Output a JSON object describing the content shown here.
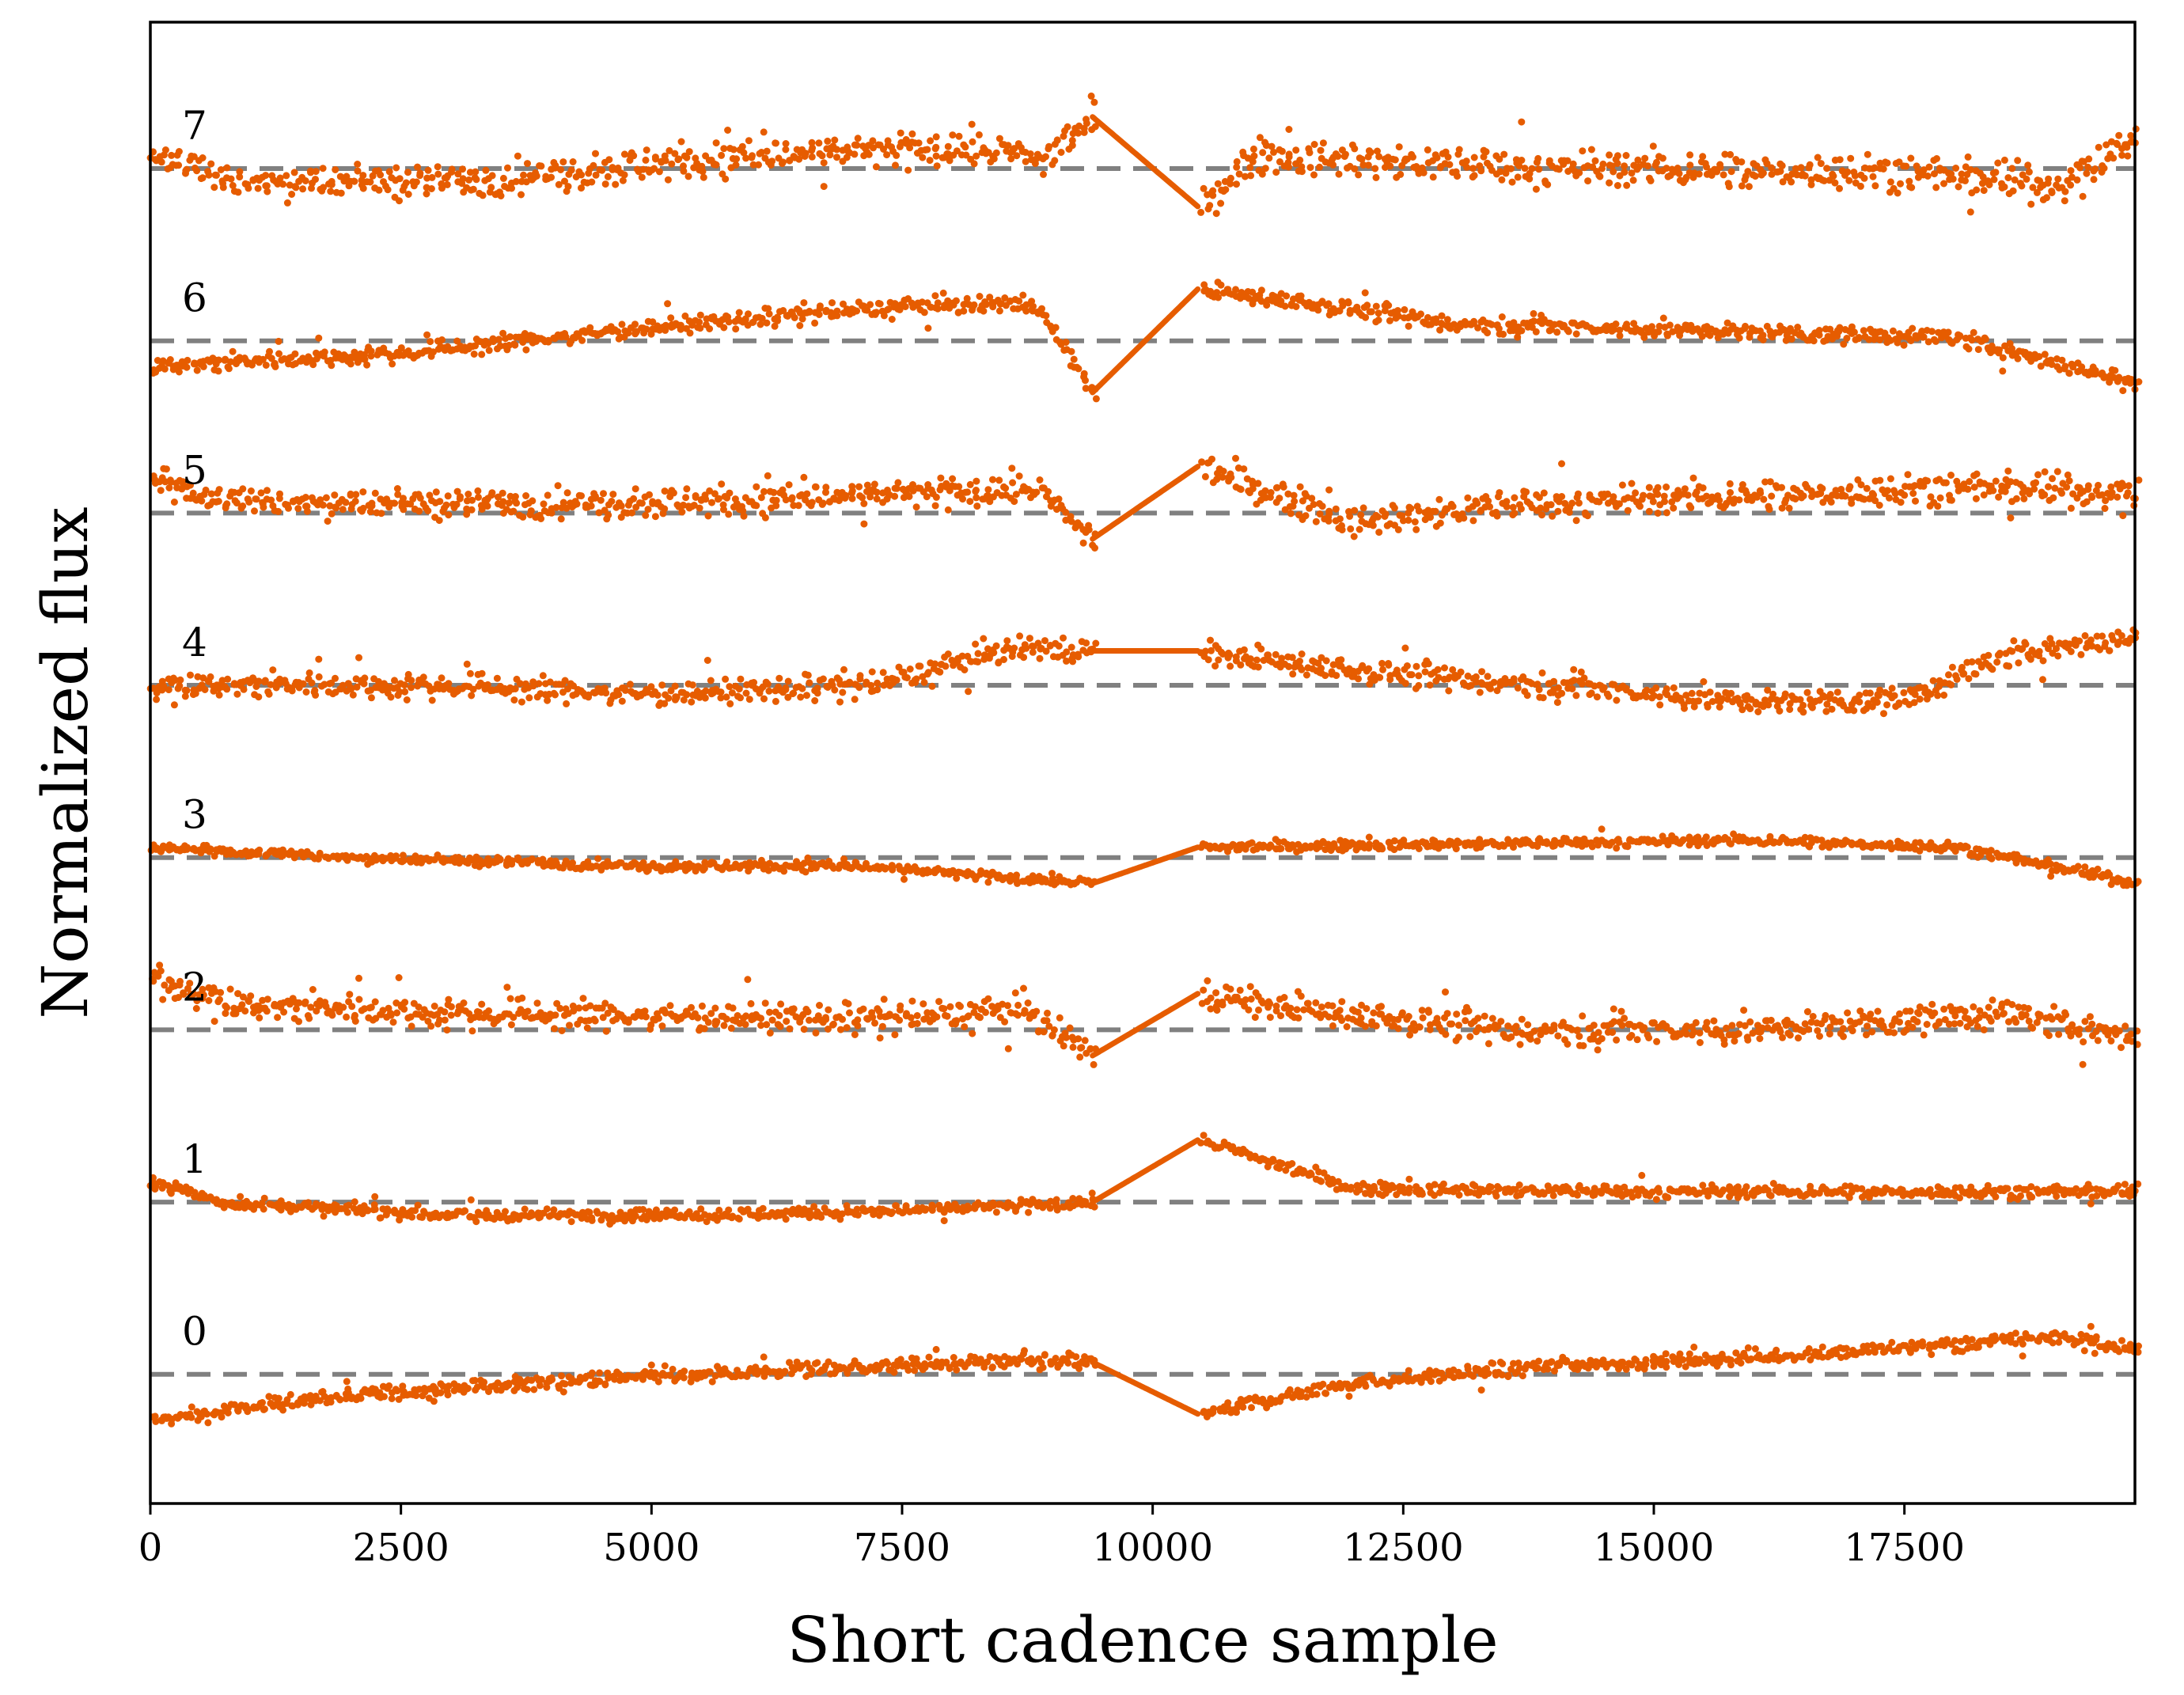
{
  "chart_data": {
    "type": "scatter",
    "title": "",
    "xlabel": "Short cadence sample",
    "ylabel": "Normalized flux",
    "xlim": [
      0,
      19800
    ],
    "x_ticks": [
      0,
      2500,
      5000,
      7500,
      10000,
      12500,
      15000,
      17500
    ],
    "x_tick_labels": [
      "0",
      "2500",
      "5000",
      "7500",
      "10000",
      "12500",
      "15000",
      "17500"
    ],
    "ylim": [
      -0.75,
      7.85
    ],
    "y_ticks_shown": false,
    "gap": [
      9400,
      10450
    ],
    "colors": {
      "data": "#e65c00",
      "baseline": "#808080",
      "axes": "#000000"
    },
    "series": [
      {
        "name": "0",
        "offset": 0,
        "label": "0",
        "trend": [
          [
            0,
            -0.27
          ],
          [
            1500,
            -0.15
          ],
          [
            3000,
            -0.08
          ],
          [
            5000,
            -0.01
          ],
          [
            7000,
            0.04
          ],
          [
            8700,
            0.07
          ],
          [
            9400,
            0.07
          ],
          [
            10450,
            -0.23
          ],
          [
            12000,
            -0.05
          ],
          [
            14000,
            0.05
          ],
          [
            16000,
            0.1
          ],
          [
            18000,
            0.17
          ],
          [
            19000,
            0.22
          ],
          [
            19800,
            0.14
          ]
        ],
        "noise": 0.03
      },
      {
        "name": "1",
        "offset": 1,
        "label": "1",
        "trend": [
          [
            0,
            0.12
          ],
          [
            700,
            0.0
          ],
          [
            3000,
            -0.08
          ],
          [
            6000,
            -0.07
          ],
          [
            8000,
            -0.04
          ],
          [
            9400,
            0.0
          ],
          [
            10450,
            0.36
          ],
          [
            12000,
            0.08
          ],
          [
            15000,
            0.06
          ],
          [
            18000,
            0.06
          ],
          [
            19800,
            0.06
          ]
        ],
        "noise": 0.025
      },
      {
        "name": "2",
        "offset": 2,
        "label": "2",
        "trend": [
          [
            0,
            0.3
          ],
          [
            900,
            0.14
          ],
          [
            3000,
            0.1
          ],
          [
            5300,
            0.08
          ],
          [
            7300,
            0.06
          ],
          [
            8700,
            0.12
          ],
          [
            9400,
            -0.15
          ],
          [
            10450,
            0.21
          ],
          [
            12000,
            0.08
          ],
          [
            13500,
            0.0
          ],
          [
            16000,
            0.0
          ],
          [
            18500,
            0.1
          ],
          [
            19800,
            -0.05
          ]
        ],
        "noise": 0.06
      },
      {
        "name": "3",
        "offset": 3,
        "label": "3",
        "trend": [
          [
            0,
            0.06
          ],
          [
            2000,
            0.0
          ],
          [
            5000,
            -0.05
          ],
          [
            7000,
            -0.05
          ],
          [
            8600,
            -0.12
          ],
          [
            9400,
            -0.15
          ],
          [
            10450,
            0.06
          ],
          [
            13000,
            0.08
          ],
          [
            16000,
            0.1
          ],
          [
            18000,
            0.06
          ],
          [
            19800,
            -0.15
          ]
        ],
        "noise": 0.02
      },
      {
        "name": "4",
        "offset": 4,
        "label": "4",
        "trend": [
          [
            0,
            0.0
          ],
          [
            3000,
            0.0
          ],
          [
            5000,
            -0.05
          ],
          [
            7200,
            0.0
          ],
          [
            8600,
            0.22
          ],
          [
            9400,
            0.2
          ],
          [
            10450,
            0.2
          ],
          [
            12000,
            0.08
          ],
          [
            14000,
            0.0
          ],
          [
            16000,
            -0.1
          ],
          [
            17500,
            -0.08
          ],
          [
            18500,
            0.18
          ],
          [
            19800,
            0.28
          ]
        ],
        "noise": 0.05
      },
      {
        "name": "5",
        "offset": 5,
        "label": "5",
        "trend": [
          [
            0,
            0.2
          ],
          [
            800,
            0.07
          ],
          [
            3000,
            0.05
          ],
          [
            6000,
            0.07
          ],
          [
            8800,
            0.14
          ],
          [
            9400,
            -0.15
          ],
          [
            10450,
            0.27
          ],
          [
            12000,
            -0.05
          ],
          [
            13500,
            0.05
          ],
          [
            16000,
            0.1
          ],
          [
            18000,
            0.15
          ],
          [
            19800,
            0.12
          ]
        ],
        "noise": 0.06
      },
      {
        "name": "6",
        "offset": 6,
        "label": "6",
        "trend": [
          [
            0,
            -0.15
          ],
          [
            2500,
            -0.07
          ],
          [
            5000,
            0.08
          ],
          [
            7500,
            0.2
          ],
          [
            8800,
            0.22
          ],
          [
            9400,
            -0.3
          ],
          [
            10450,
            0.3
          ],
          [
            13000,
            0.1
          ],
          [
            16000,
            0.05
          ],
          [
            18000,
            0.02
          ],
          [
            19800,
            -0.25
          ]
        ],
        "noise": 0.035
      },
      {
        "name": "7",
        "offset": 7,
        "label": "7",
        "trend": [
          [
            0,
            0.12
          ],
          [
            700,
            -0.07
          ],
          [
            3000,
            -0.08
          ],
          [
            5500,
            0.05
          ],
          [
            8000,
            0.12
          ],
          [
            8900,
            0.06
          ],
          [
            9400,
            0.3
          ],
          [
            10450,
            -0.22
          ],
          [
            11000,
            0.08
          ],
          [
            14000,
            0.0
          ],
          [
            17500,
            -0.02
          ],
          [
            19000,
            -0.1
          ],
          [
            19800,
            0.18
          ]
        ],
        "noise": 0.07
      }
    ]
  }
}
